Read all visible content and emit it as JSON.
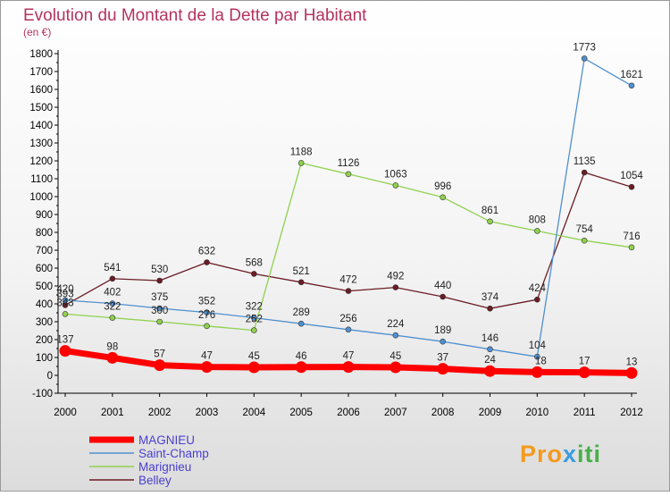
{
  "chart_data": {
    "type": "line",
    "title": "Evolution du Montant de la Dette par Habitant",
    "subtitle": "(en €)",
    "xlabel": "",
    "ylabel": "",
    "categories": [
      "2000",
      "2001",
      "2002",
      "2003",
      "2004",
      "2005",
      "2006",
      "2007",
      "2008",
      "2009",
      "2010",
      "2011",
      "2012"
    ],
    "ylim": [
      -100,
      1800
    ],
    "yticks": [
      -100,
      0,
      100,
      200,
      300,
      400,
      500,
      600,
      700,
      800,
      900,
      1000,
      1100,
      1200,
      1300,
      1400,
      1500,
      1600,
      1700,
      1800
    ],
    "grid": false,
    "legend_position": "bottom-left",
    "series": [
      {
        "name": "MAGNIEU",
        "color": "#ff0000",
        "values": [
          137,
          98,
          57,
          47,
          45,
          46,
          47,
          45,
          37,
          24,
          18,
          17,
          13
        ]
      },
      {
        "name": "Saint-Champ",
        "color": "#4f90cf",
        "values": [
          420,
          402,
          375,
          352,
          322,
          289,
          256,
          224,
          189,
          146,
          104,
          1773,
          1621
        ]
      },
      {
        "name": "Marignieu",
        "color": "#8fd14f",
        "values": [
          343,
          322,
          300,
          276,
          252,
          1188,
          1126,
          1063,
          996,
          861,
          808,
          754,
          716
        ]
      },
      {
        "name": "Belley",
        "color": "#6b1c24",
        "values": [
          393,
          541,
          530,
          632,
          568,
          521,
          472,
          492,
          440,
          374,
          424,
          1135,
          1054
        ]
      }
    ],
    "label_positions": [
      [
        "above",
        "above",
        "above",
        "above",
        "above",
        "above",
        "above",
        "above",
        "above",
        "above",
        "right",
        "above",
        "above"
      ],
      [
        "above",
        "above",
        "above",
        "above",
        "above",
        "above",
        "above",
        "above",
        "above",
        "above",
        "above",
        "above",
        "above"
      ],
      [
        "above",
        "above",
        "above",
        "above",
        "above",
        "above",
        "above",
        "above",
        "above",
        "above",
        "above",
        "above",
        "above"
      ],
      [
        "above",
        "above",
        "above",
        "above",
        "above",
        "above",
        "above",
        "above",
        "above",
        "above",
        "above",
        "above",
        "above"
      ]
    ]
  },
  "brand": {
    "part1": "Pro",
    "part2": "x",
    "part3": "iti",
    "colors": [
      "#f39a1f",
      "#3a9be0",
      "#f2c21a",
      "#e93a8a",
      "#46b04a"
    ]
  }
}
